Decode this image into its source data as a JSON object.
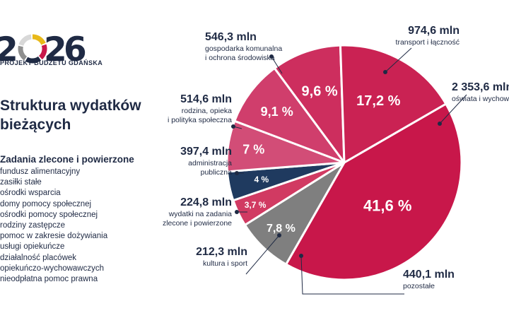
{
  "logo": {
    "digits": [
      "2",
      "0",
      "2",
      "6"
    ],
    "subtitle": "PROJEKT BUDŻETU GDAŃSKA",
    "ring_colors": [
      "#e8b91a",
      "#c8174a",
      "#1f2a44",
      "#8e8e8e",
      "#d8d8d8"
    ]
  },
  "title": "Struktura wydatków bieżących",
  "subheading": "Zadania zlecone i powierzone",
  "items": [
    "fundusz alimentacyjny",
    "zasiłki stałe",
    "ośrodki wsparcia",
    "domy pomocy społecznej",
    "ośrodki pomocy społecznej",
    "rodziny zastępcze",
    "pomoc w zakresie dożywiania",
    "usługi opiekuńcze",
    "działalność placówek",
    "opiekuńczo-wychowawczych",
    "nieodpłatna pomoc prawna"
  ],
  "chart_data": {
    "type": "pie",
    "start_angle_deg": -30,
    "direction": "clockwise",
    "slices": [
      {
        "name": "oświata i wychowanie",
        "amount": "2 353,6 mln",
        "value": 41.6,
        "pct_label": "41,6 %",
        "desc": [
          "oświata i wychowanie"
        ],
        "color": "#c8174a"
      },
      {
        "name": "pozostałe",
        "amount": "440,1 mln",
        "value": 7.8,
        "pct_label": "7,8 %",
        "desc": [
          "pozostałe"
        ],
        "color": "#7f7f7f"
      },
      {
        "name": "kultura i sport",
        "amount": "212,3 mln",
        "value": 3.7,
        "pct_label": "3,7 %",
        "desc": [
          "kultura i sport"
        ],
        "color": "#d13a62"
      },
      {
        "name": "wydatki na zadania zlecone i powierzone",
        "amount": "224,8 mln",
        "value": 4,
        "pct_label": "4 %",
        "desc": [
          "wydatki na zadania",
          "zlecone i powierzone"
        ],
        "color": "#1f3a5f"
      },
      {
        "name": "administracja publiczna",
        "amount": "397,4 mln",
        "value": 7,
        "pct_label": "7 %",
        "desc": [
          "administracja",
          "publiczna"
        ],
        "color": "#d24d77"
      },
      {
        "name": "rodzina, opieka i polityka społeczna",
        "amount": "514,6 mln",
        "value": 9.1,
        "pct_label": "9,1 %",
        "desc": [
          "rodzina, opieka",
          "i polityka społeczna"
        ],
        "color": "#d03e6c"
      },
      {
        "name": "gospodarka komunalna i ochrona środowiska",
        "amount": "546,3 mln",
        "value": 9.6,
        "pct_label": "9,6 %",
        "desc": [
          "gospodarka komunalna",
          "i ochrona środowiska"
        ],
        "color": "#cd2e5e"
      },
      {
        "name": "transport i łączność",
        "amount": "974,6 mln",
        "value": 17.2,
        "pct_label": "17,2 %",
        "desc": [
          "transport i łączność"
        ],
        "color": "#ca2253"
      }
    ]
  }
}
